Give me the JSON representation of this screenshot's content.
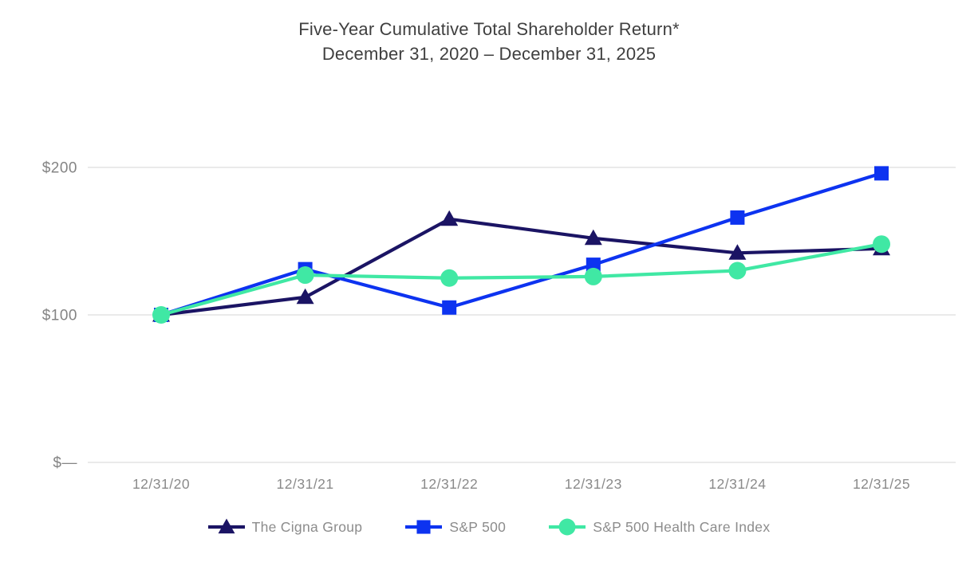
{
  "title": {
    "line1": "Five-Year Cumulative Total Shareholder Return*",
    "line2": "December 31, 2020 – December 31, 2025"
  },
  "chart_data": {
    "type": "line",
    "title": "Five-Year Cumulative Total Shareholder Return*",
    "subtitle": "December 31, 2020 – December 31, 2025",
    "categories": [
      "12/31/20",
      "12/31/21",
      "12/31/22",
      "12/31/23",
      "12/31/24",
      "12/31/25"
    ],
    "series": [
      {
        "name": "The Cigna Group",
        "marker": "triangle",
        "color": "#1b1464",
        "values": [
          100,
          112,
          165,
          152,
          142,
          145
        ]
      },
      {
        "name": "S&P 500",
        "marker": "square",
        "color": "#0d33f0",
        "values": [
          100,
          131,
          105,
          134,
          166,
          196
        ]
      },
      {
        "name": "S&P 500 Health Care Index",
        "marker": "circle",
        "color": "#40e8a4",
        "values": [
          100,
          127,
          125,
          126,
          130,
          148
        ]
      }
    ],
    "xlabel": "",
    "ylabel": "",
    "ylim": [
      0,
      200
    ],
    "y_ticks": [
      {
        "label": "$200",
        "value": 200
      },
      {
        "label": "$100",
        "value": 100
      },
      {
        "label": "$—",
        "value": 0
      }
    ],
    "grid": true,
    "gridline_color": "#eaeaea",
    "legend_position": "bottom"
  }
}
